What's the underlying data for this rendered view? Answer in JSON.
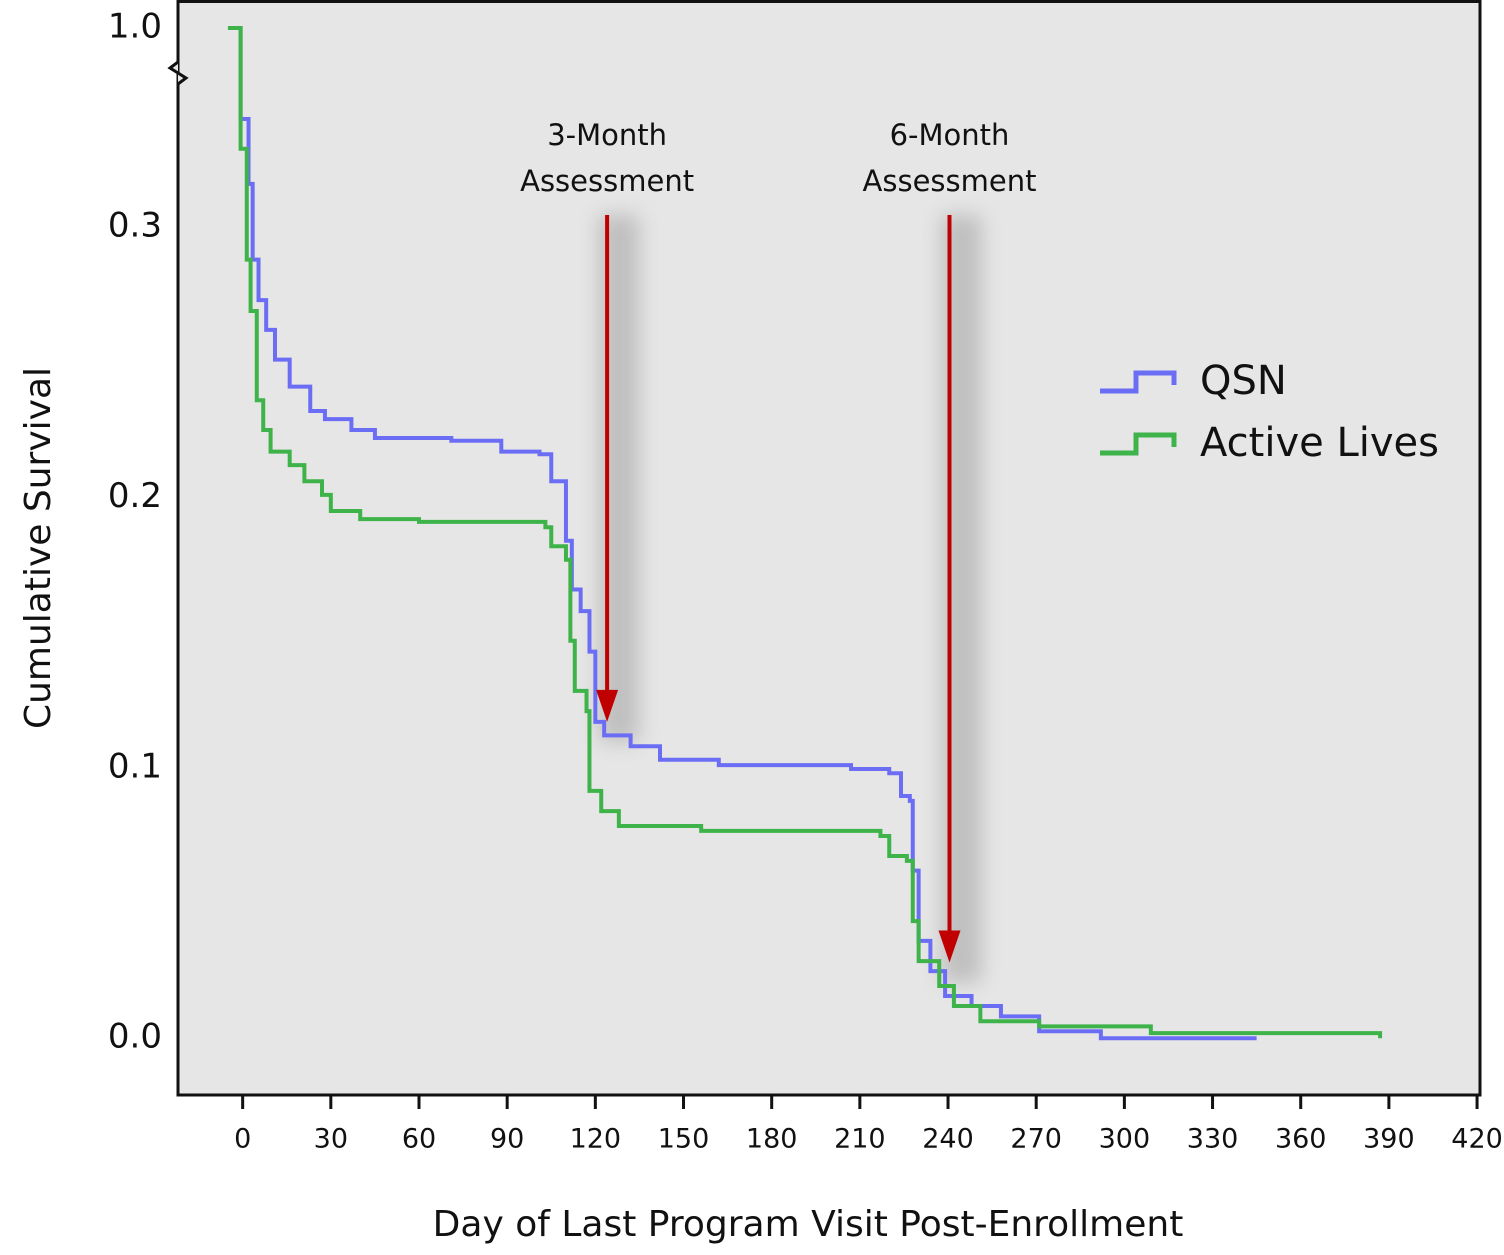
{
  "chart_data": {
    "type": "step",
    "y_label": "Cumulative Survival",
    "x_label": "Day of Last Program Visit Post-Enrollment",
    "xlim": [
      -22,
      421
    ],
    "xticks": [
      0,
      30,
      60,
      90,
      120,
      150,
      180,
      210,
      240,
      270,
      300,
      330,
      360,
      390,
      420
    ],
    "ylim": [
      -0.021,
      1.0
    ],
    "y_break": [
      0.35,
      1.0
    ],
    "yticks": [
      {
        "value": 0,
        "label": "0.0"
      },
      0.1,
      0.2,
      0.3,
      {
        "value": 1,
        "label": "1.0"
      }
    ],
    "grid": false,
    "legend": "right",
    "series": [
      {
        "name": "QSN",
        "color": "#6b6ef5",
        "x": [
          -5,
          -0.7,
          2,
          3.4,
          5.4,
          8,
          11,
          16,
          23,
          28,
          37,
          45,
          71,
          88,
          101,
          105,
          110,
          112,
          115,
          118,
          120,
          123,
          132,
          142,
          162,
          207,
          220,
          224,
          227,
          228,
          230,
          234,
          239,
          248,
          258,
          271,
          292,
          345
        ],
        "values": [
          1.0,
          0.34,
          0.316,
          0.288,
          0.273,
          0.262,
          0.251,
          0.241,
          0.232,
          0.229,
          0.225,
          0.222,
          0.221,
          0.217,
          0.216,
          0.206,
          0.184,
          0.166,
          0.158,
          0.143,
          0.117,
          0.112,
          0.108,
          0.103,
          0.101,
          0.0996,
          0.098,
          0.0896,
          0.0878,
          0.062,
          0.036,
          0.0248,
          0.0156,
          0.0119,
          0.0081,
          0.0026,
          0,
          0
        ]
      },
      {
        "name": "Active Lives",
        "color": "#3db34a",
        "x": [
          -5,
          -0.7,
          1.4,
          2.7,
          4.8,
          7,
          9.5,
          16,
          21,
          27,
          30,
          40,
          60,
          103,
          105,
          110,
          111.5,
          113,
          117,
          118,
          122,
          128,
          156,
          217,
          220,
          226,
          228,
          230,
          237,
          242,
          251,
          271,
          309,
          387
        ],
        "values": [
          1.0,
          0.329,
          0.288,
          0.269,
          0.236,
          0.225,
          0.217,
          0.212,
          0.206,
          0.201,
          0.195,
          0.192,
          0.191,
          0.189,
          0.182,
          0.177,
          0.147,
          0.1285,
          0.121,
          0.0915,
          0.084,
          0.0785,
          0.0767,
          0.0748,
          0.0674,
          0.0656,
          0.0433,
          0.0285,
          0.0193,
          0.0119,
          0.0063,
          0.0044,
          0.0019,
          0
        ]
      }
    ],
    "annotations": [
      {
        "text_lines": [
          "3-Month",
          "Assessment"
        ],
        "x": 124,
        "y": 0.117
      },
      {
        "text_lines": [
          "6-Month",
          "Assessment"
        ],
        "x": 240.5,
        "y": 0.028
      }
    ]
  }
}
